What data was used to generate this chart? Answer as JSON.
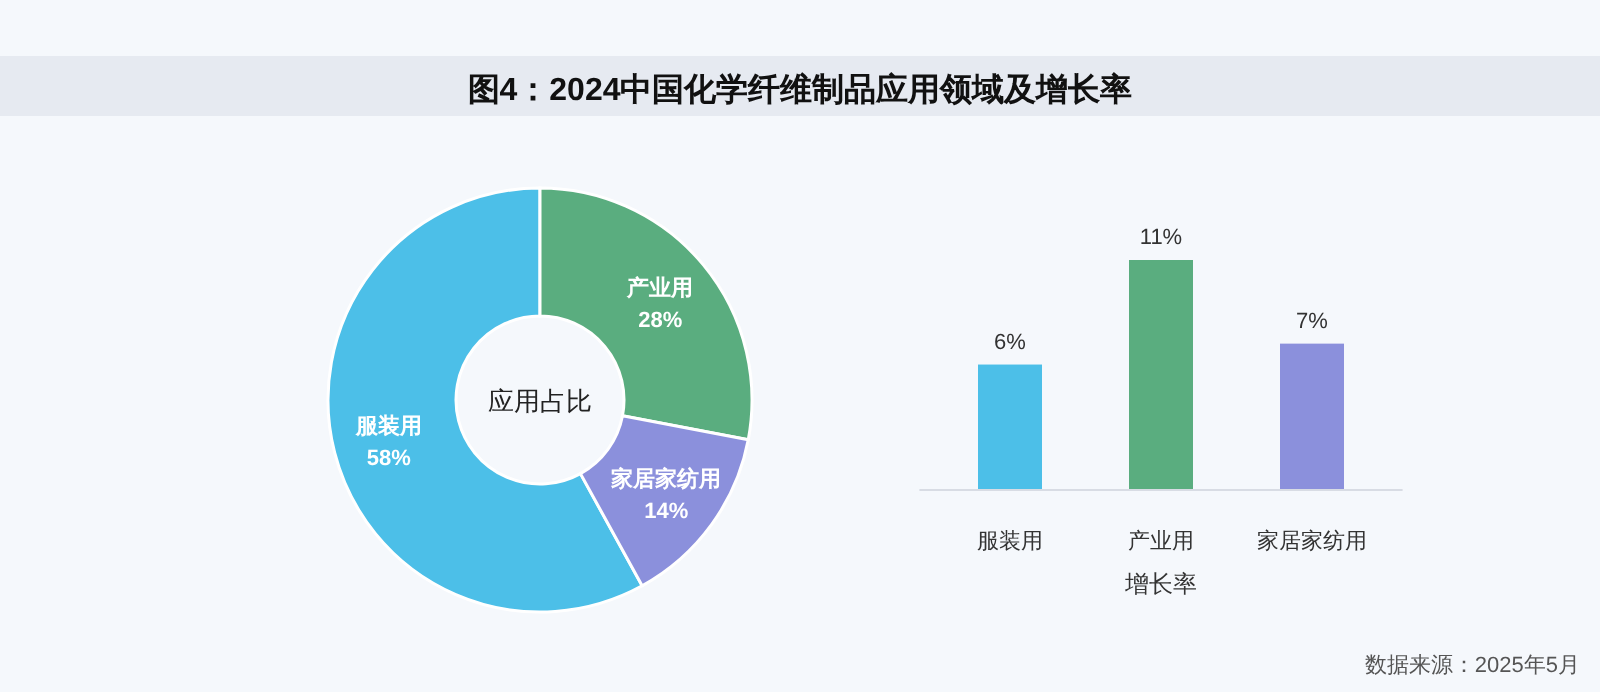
{
  "chart_data": [
    {
      "type": "donut",
      "title": "图4：2024中国化学纤维制品应用领域及增长率",
      "categories": [
        "服装用",
        "产业用",
        "家居家纺用"
      ],
      "values": [
        58,
        28,
        14
      ],
      "value_labels": [
        "58%",
        "28%",
        "14%"
      ],
      "colors": [
        "#4cbfe8",
        "#5aad7f",
        "#8b90dc"
      ],
      "annotations": [
        "应用占比"
      ]
    },
    {
      "type": "bar",
      "categories": [
        "服装用",
        "产业用",
        "家居家纺用"
      ],
      "values": [
        6,
        11,
        7
      ],
      "value_labels": [
        "6%",
        "11%",
        "7%"
      ],
      "colors": [
        "#4cbfe8",
        "#5aad7f",
        "#8b90dc"
      ],
      "xlabel": "增长率",
      "annotations": [
        "数据来源：2025年5月"
      ]
    }
  ]
}
